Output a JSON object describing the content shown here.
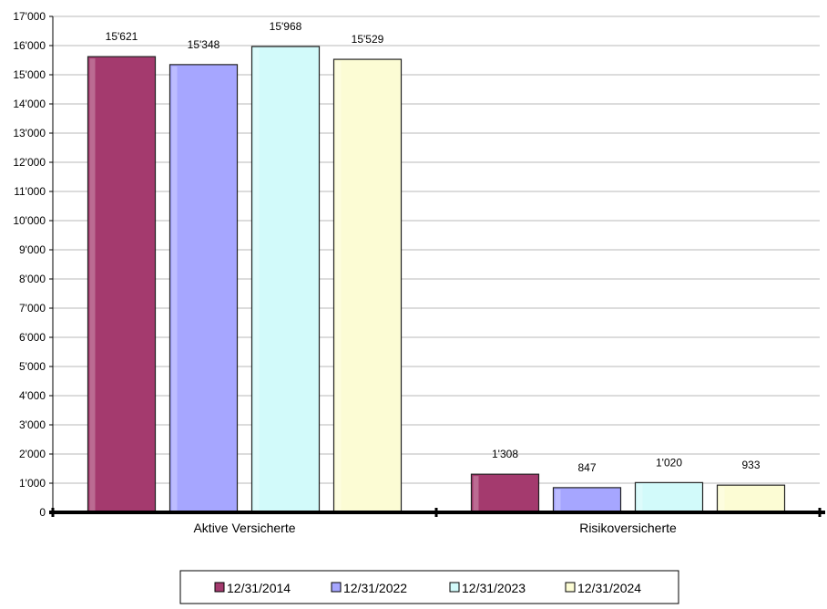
{
  "chart_data": {
    "type": "bar",
    "title": "",
    "xlabel": "",
    "ylabel": "",
    "categories": [
      "Aktive Versicherte",
      "Risikoversicherte"
    ],
    "series": [
      {
        "name": "12/31/2014",
        "values": [
          15621,
          1308
        ],
        "labels": [
          "15'621",
          "1'308"
        ],
        "color": "#A43A6E"
      },
      {
        "name": "12/31/2022",
        "values": [
          15348,
          847
        ],
        "labels": [
          "15'348",
          "847"
        ],
        "color": "#A6A6FF"
      },
      {
        "name": "12/31/2023",
        "values": [
          15968,
          1020
        ],
        "labels": [
          "15'968",
          "1'020"
        ],
        "color": "#D2FAFA"
      },
      {
        "name": "12/31/2024",
        "values": [
          15529,
          933
        ],
        "labels": [
          "15'529",
          "933"
        ],
        "color": "#FCFCD4"
      }
    ],
    "ylim": [
      0,
      17000
    ],
    "yticks": [
      0,
      1000,
      2000,
      3000,
      4000,
      5000,
      6000,
      7000,
      8000,
      9000,
      10000,
      11000,
      12000,
      13000,
      14000,
      15000,
      16000,
      17000
    ],
    "ytick_labels": [
      "0",
      "1'000",
      "2'000",
      "3'000",
      "4'000",
      "5'000",
      "6'000",
      "7'000",
      "8'000",
      "9'000",
      "10'000",
      "11'000",
      "12'000",
      "13'000",
      "14'000",
      "15'000",
      "16'000",
      "17'000"
    ],
    "grid": true,
    "legend_position": "bottom"
  }
}
